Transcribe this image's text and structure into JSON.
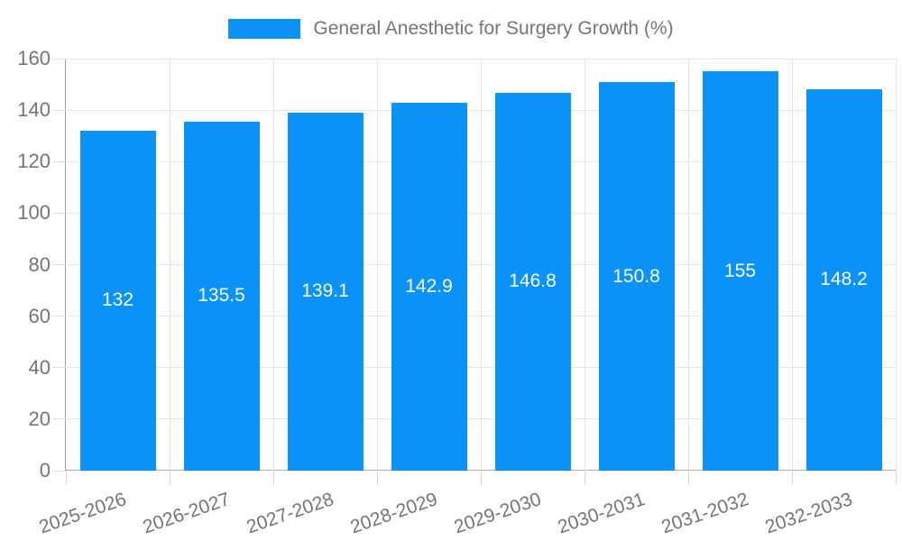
{
  "chart_data": {
    "type": "bar",
    "title": "General Anesthetic for Surgery Growth (%)",
    "categories": [
      "2025-2026",
      "2026-2027",
      "2027-2028",
      "2028-2029",
      "2029-2030",
      "2030-2031",
      "2031-2032",
      "2032-2033"
    ],
    "values": [
      132,
      135.5,
      139.1,
      142.9,
      146.8,
      150.8,
      155,
      148.2
    ],
    "bar_labels": [
      "132",
      "135.5",
      "139.1",
      "142.9",
      "146.8",
      "150.8",
      "155",
      "148.2"
    ],
    "xlabel": "",
    "ylabel": "",
    "ylim": [
      0,
      160
    ],
    "yticks": [
      0,
      20,
      40,
      60,
      80,
      100,
      120,
      140,
      160
    ],
    "grid": true,
    "legend_position": "top",
    "colors": {
      "bar": "#0992f7",
      "grid": "#e6e6e6",
      "axis": "#9e9e9e",
      "baseline": "#b0b0b0",
      "tick_text": "#757575",
      "value_label": "#ffffff",
      "background": "#ffffff"
    }
  }
}
